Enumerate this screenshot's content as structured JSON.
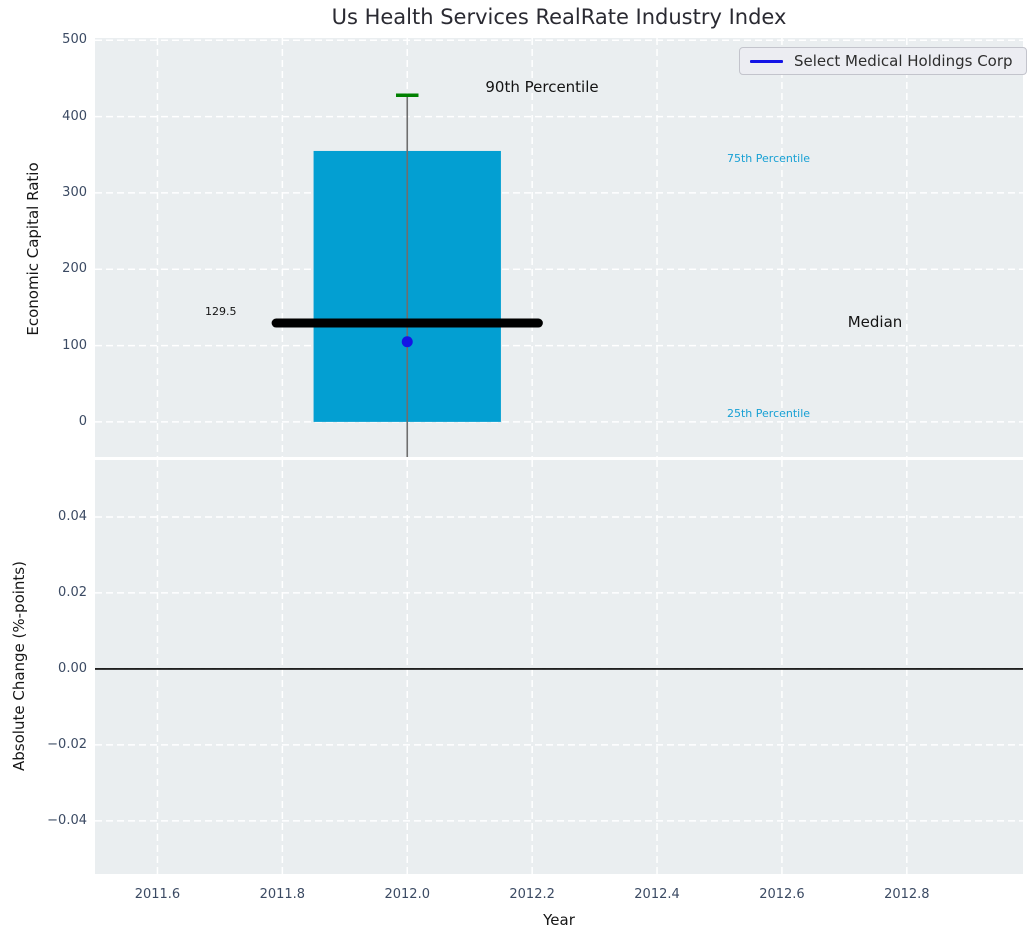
{
  "title": "Us Health Services RealRate Industry Index",
  "legend": {
    "label": "Select Medical Holdings Corp"
  },
  "axes": {
    "top_ylabel": "Economic Capital Ratio",
    "bottom_ylabel": "Absolute Change (%-points)",
    "xlabel": "Year"
  },
  "annotations": {
    "p90_label": "90th Percentile",
    "p75_label": "75th Percentile",
    "median_label": "Median",
    "p25_label": "25th Percentile",
    "median_value_label": "129.5"
  },
  "colors": {
    "axes_bg": "#eaeef0",
    "grid": "#ffffff",
    "box_fill": "#039fd2",
    "median_line": "#000000",
    "whisker": "#6e6e6e",
    "p90_cap": "#008000",
    "series_blue": "#1414e6",
    "percentile_text": "#17a0d4",
    "tick_text": "#3b4a63",
    "zero_line": "#000000"
  },
  "chart_data": [
    {
      "type": "box",
      "panel": "top",
      "ylabel": "Economic Capital Ratio",
      "xlim": [
        2011.5,
        2012.986
      ],
      "ylim": [
        -46,
        503
      ],
      "xticks": [
        2011.6,
        2011.8,
        2012.0,
        2012.2,
        2012.4,
        2012.6,
        2012.8
      ],
      "xtick_labels": [
        "2011.6",
        "2011.8",
        "2012.0",
        "2012.2",
        "2012.4",
        "2012.6",
        "2012.8"
      ],
      "yticks": [
        0,
        100,
        200,
        300,
        400,
        500
      ],
      "ytick_labels": [
        "0",
        "100",
        "200",
        "300",
        "400",
        "500"
      ],
      "grid": true,
      "box": {
        "x": 2012.0,
        "width": 0.3,
        "p25": 0,
        "p75": 355
      },
      "p90_cap": {
        "value": 428,
        "width": 0.036
      },
      "whisker": {
        "from": 428,
        "low_clipped_below_axis": true
      },
      "median_line": {
        "value": 129.5,
        "halfwidth": 0.21
      },
      "series": [
        {
          "name": "Select Medical Holdings Corp",
          "points": [
            {
              "x": 2012.0,
              "y": 105
            }
          ]
        }
      ]
    },
    {
      "type": "line",
      "panel": "bottom",
      "ylabel": "Absolute Change (%-points)",
      "xlabel": "Year",
      "xlim": [
        2011.5,
        2012.986
      ],
      "ylim": [
        -0.054,
        0.055
      ],
      "xticks": [
        2011.6,
        2011.8,
        2012.0,
        2012.2,
        2012.4,
        2012.6,
        2012.8
      ],
      "xtick_labels": [
        "2011.6",
        "2011.8",
        "2012.0",
        "2012.2",
        "2012.4",
        "2012.6",
        "2012.8"
      ],
      "yticks": [
        -0.04,
        -0.02,
        0.0,
        0.02,
        0.04
      ],
      "ytick_labels": [
        "−0.04",
        "−0.02",
        "0.00",
        "0.02",
        "0.04"
      ],
      "grid": true,
      "zero_line": 0.0,
      "series": []
    }
  ]
}
